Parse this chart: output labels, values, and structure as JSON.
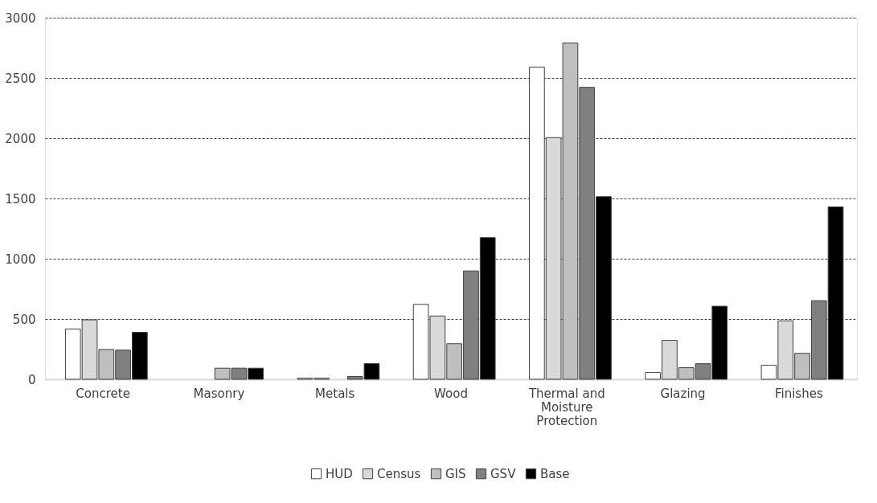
{
  "chart_data": {
    "type": "bar",
    "categories": [
      "Concrete",
      "Masonry",
      "Metals",
      "Wood",
      "Thermal and Moisture Protection",
      "Glazing",
      "Finishes"
    ],
    "series": [
      {
        "name": "HUD",
        "color": "#ffffff",
        "values": [
          417,
          null,
          9,
          621,
          2590,
          56,
          116
        ]
      },
      {
        "name": "Census",
        "color": "#d9d9d9",
        "values": [
          493,
          null,
          9,
          525,
          2005,
          323,
          485
        ]
      },
      {
        "name": "GIS",
        "color": "#bfbfbf",
        "values": [
          247,
          92,
          null,
          295,
          2790,
          96,
          215
        ]
      },
      {
        "name": "GSV",
        "color": "#808080",
        "values": [
          242,
          92,
          23,
          899,
          2422,
          129,
          652
        ]
      },
      {
        "name": "Base",
        "color": "#000000",
        "values": [
          390,
          92,
          130,
          1175,
          1515,
          606,
          1430
        ]
      }
    ],
    "ylim": [
      0,
      3000
    ],
    "yticks": [
      0,
      500,
      1000,
      1500,
      2000,
      2500,
      3000
    ],
    "grid": "y",
    "legend": "bottom"
  }
}
